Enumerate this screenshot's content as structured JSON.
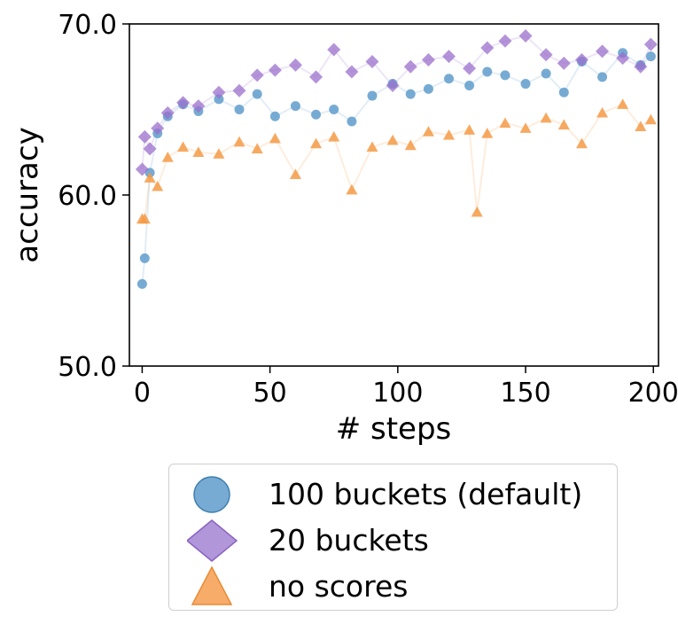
{
  "chart_data": {
    "type": "scatter",
    "xlabel": "# steps",
    "ylabel": "accuracy",
    "xlim": [
      -5,
      202
    ],
    "ylim": [
      50,
      70
    ],
    "xticks": [
      0,
      50,
      100,
      150,
      200
    ],
    "xtick_labels": [
      "0",
      "50",
      "100",
      "150",
      "200"
    ],
    "yticks": [
      50,
      60,
      70
    ],
    "ytick_labels": [
      "50.0",
      "60.0",
      "70.0"
    ],
    "grid": false,
    "legend_position": "below",
    "series": [
      {
        "name": "100 buckets (default)",
        "marker": "circle",
        "color": "#5f9ccb",
        "x": [
          0,
          1,
          3,
          6,
          10,
          16,
          22,
          30,
          38,
          45,
          52,
          60,
          68,
          75,
          82,
          90,
          98,
          105,
          112,
          120,
          128,
          135,
          142,
          150,
          158,
          165,
          172,
          180,
          188,
          195,
          199
        ],
        "y": [
          54.8,
          56.3,
          61.3,
          63.6,
          64.6,
          65.3,
          64.9,
          65.6,
          65.0,
          65.9,
          64.6,
          65.2,
          64.7,
          65.0,
          64.3,
          65.8,
          66.5,
          65.9,
          66.2,
          66.8,
          66.4,
          67.2,
          67.0,
          66.5,
          67.1,
          66.0,
          67.8,
          66.9,
          68.3,
          67.6,
          68.1
        ]
      },
      {
        "name": "20 buckets",
        "marker": "diamond",
        "color": "#9b6fcc",
        "x": [
          0,
          1,
          3,
          6,
          10,
          16,
          22,
          30,
          38,
          45,
          52,
          60,
          68,
          75,
          82,
          90,
          98,
          105,
          112,
          120,
          128,
          135,
          142,
          150,
          158,
          165,
          172,
          180,
          188,
          195,
          199
        ],
        "y": [
          61.5,
          63.4,
          62.7,
          63.9,
          64.8,
          65.4,
          65.2,
          66.0,
          66.1,
          67.0,
          67.3,
          67.6,
          66.9,
          68.5,
          67.2,
          67.8,
          66.4,
          67.5,
          67.9,
          68.1,
          67.4,
          68.6,
          69.0,
          69.3,
          68.2,
          67.7,
          67.9,
          68.4,
          68.0,
          67.5,
          68.8
        ]
      },
      {
        "name": "no scores",
        "marker": "triangle",
        "color": "#f59a45",
        "x": [
          0,
          1,
          3,
          6,
          10,
          16,
          22,
          30,
          38,
          45,
          52,
          60,
          68,
          75,
          82,
          90,
          98,
          105,
          112,
          120,
          128,
          131,
          135,
          142,
          150,
          158,
          165,
          172,
          180,
          188,
          195,
          199
        ],
        "y": [
          58.6,
          58.6,
          61.0,
          60.5,
          62.2,
          62.8,
          62.5,
          62.4,
          63.1,
          62.7,
          63.3,
          61.2,
          63.0,
          63.4,
          60.3,
          62.8,
          63.2,
          62.9,
          63.7,
          63.5,
          63.8,
          59.0,
          63.6,
          64.2,
          63.9,
          64.5,
          64.1,
          63.0,
          64.8,
          65.3,
          64.0,
          64.4
        ]
      }
    ]
  }
}
